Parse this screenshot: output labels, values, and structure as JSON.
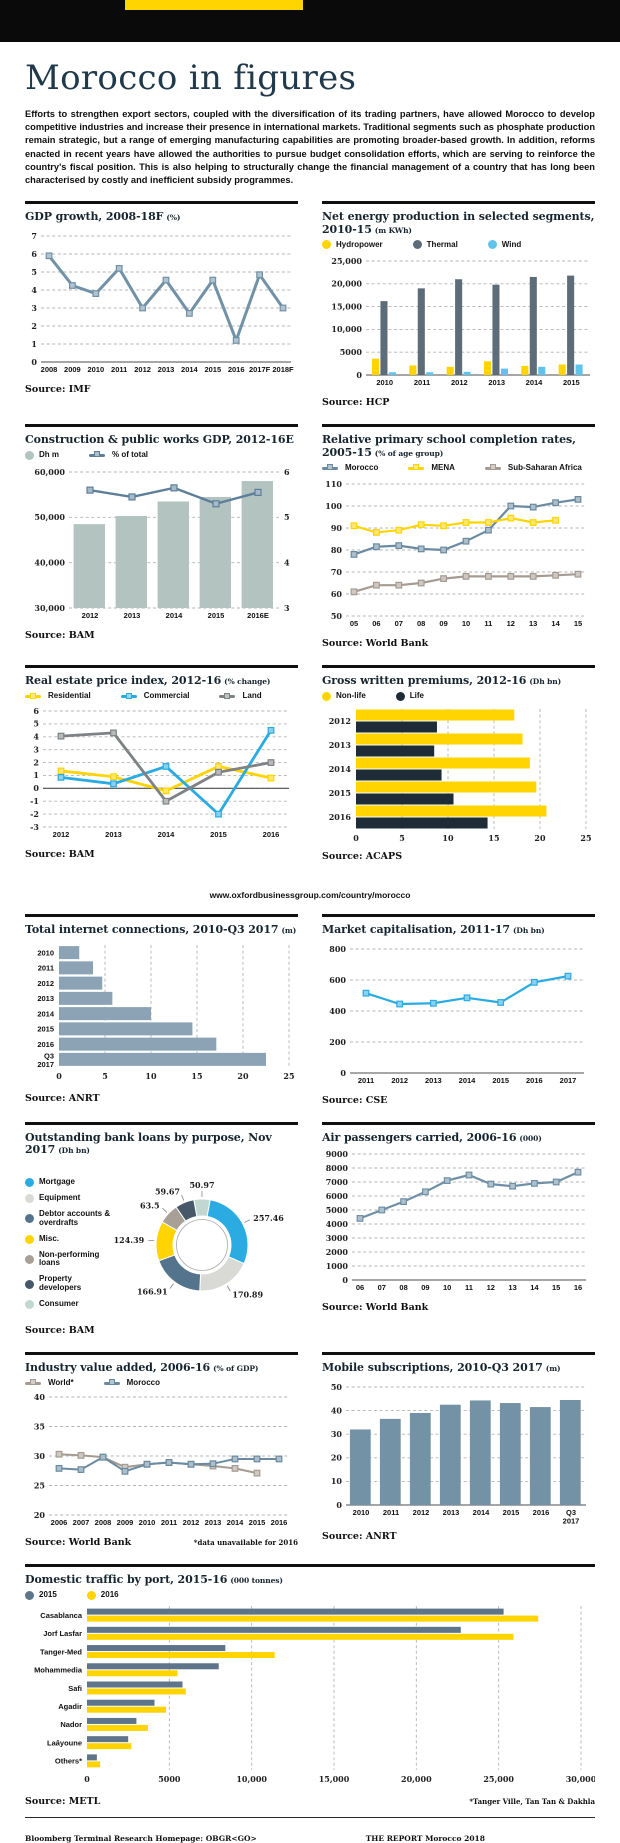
{
  "page": {
    "title": "Morocco in figures",
    "intro": "Efforts to strengthen export sectors, coupled with the diversification of its trading partners, have allowed Morocco to develop competitive industries and increase their presence in international markets. Traditional segments such as phosphate production remain strategic, but a range of emerging manufacturing capabilities are promoting broader-based growth. In addition, reforms enacted in recent years have allowed the authorities to pursue budget consolidation efforts, which are serving to reinforce the country's fiscal position. This is also helping to structurally change the financial management of a country that has long been characterised by costly and inefficient subsidy programmes.",
    "url_banner": "www.oxfordbusinessgroup.com/country/morocco",
    "footer_left": "Bloomberg Terminal Research Homepage: OBGR<GO>",
    "footer_right": "THE REPORT Morocco 2018"
  },
  "colors": {
    "accent_yellow": "#ffd400",
    "title_navy": "#203a4c",
    "steel_blue": "#6e8ea6",
    "bright_blue": "#29abe2",
    "dark_navy": "#1e2c38"
  },
  "chart_data": [
    {
      "id": "gdp-growth",
      "type": "line",
      "title": "GDP growth, 2008-18F",
      "unit": "(%)",
      "source": "Source: IMF",
      "note": "",
      "x": [
        "2008",
        "2009",
        "2010",
        "2011",
        "2012",
        "2013",
        "2014",
        "2015",
        "2016",
        "2017F",
        "2018F"
      ],
      "series": [
        {
          "name": "",
          "color": "#7191a7",
          "values": [
            5.9,
            4.25,
            3.8,
            5.2,
            3.0,
            4.55,
            2.7,
            4.55,
            1.2,
            4.85,
            3.0
          ]
        }
      ],
      "ylim": [
        0,
        7
      ],
      "yticks": [
        0,
        1,
        2,
        3,
        4,
        5,
        6,
        7
      ]
    },
    {
      "id": "energy",
      "type": "bar",
      "title": "Net energy production in selected segments, 2010-15",
      "unit": "(m KWh)",
      "source": "Source: HCP",
      "note": "",
      "x": [
        "2010",
        "2011",
        "2012",
        "2013",
        "2014",
        "2015"
      ],
      "series": [
        {
          "name": "Hydropower",
          "color": "#ffd400",
          "values": [
            3600,
            2100,
            1800,
            3000,
            2000,
            2300
          ]
        },
        {
          "name": "Thermal",
          "color": "#5d6c79",
          "values": [
            16200,
            19000,
            21000,
            19800,
            21500,
            21800
          ]
        },
        {
          "name": "Wind",
          "color": "#5fc3ea",
          "values": [
            600,
            600,
            700,
            1400,
            1800,
            2300
          ]
        }
      ],
      "ylim": [
        0,
        25000
      ],
      "yticks": [
        0,
        5000,
        10000,
        15000,
        20000,
        25000
      ],
      "ytick_labels": [
        "0",
        "5000",
        "10,000",
        "15,000",
        "20,000",
        "25,000"
      ]
    },
    {
      "id": "construction",
      "type": "combo",
      "title": "Construction & public works GDP, 2012-16E",
      "unit": "",
      "source": "Source: BAM",
      "note": "",
      "x": [
        "2012",
        "2013",
        "2014",
        "2015",
        "2016E"
      ],
      "bar_series": {
        "name": "Dh m",
        "color": "#b3c4c0",
        "values": [
          48500,
          50300,
          53500,
          54500,
          58000
        ]
      },
      "line_series": {
        "name": "% of total",
        "color": "#5d7f99",
        "values": [
          5.6,
          5.45,
          5.65,
          5.3,
          5.55
        ]
      },
      "ylim": [
        30000,
        60000
      ],
      "yticks": [
        30000,
        40000,
        50000,
        60000
      ],
      "ytick_labels": [
        "30,000",
        "40,000",
        "50,000",
        "60,000"
      ],
      "y2lim": [
        3,
        6
      ],
      "y2ticks": [
        3,
        4,
        5,
        6
      ]
    },
    {
      "id": "school",
      "type": "line",
      "title": "Relative primary school completion rates, 2005-15",
      "unit": "(% of age group)",
      "source": "Source: World Bank",
      "note": "",
      "x": [
        "05",
        "06",
        "07",
        "08",
        "09",
        "10",
        "11",
        "12",
        "13",
        "14",
        "15"
      ],
      "series": [
        {
          "name": "Morocco",
          "color": "#6a8aa1",
          "values": [
            78,
            81.5,
            82,
            80.5,
            80,
            84,
            89,
            100,
            99.5,
            101.5,
            103
          ]
        },
        {
          "name": "MENA",
          "color": "#ffd400",
          "values": [
            91,
            88,
            89,
            91.5,
            91,
            92.5,
            92.5,
            94.5,
            92.5,
            93.5,
            null
          ]
        },
        {
          "name": "Sub-Saharan Africa",
          "color": "#a59b92",
          "values": [
            61,
            64,
            64,
            65,
            67,
            68,
            68,
            68,
            68,
            68.5,
            69
          ]
        }
      ],
      "ylim": [
        50,
        110
      ],
      "yticks": [
        50,
        60,
        70,
        80,
        90,
        100,
        110
      ]
    },
    {
      "id": "realestate",
      "type": "line",
      "title": "Real estate price index, 2012-16",
      "unit": "(% change)",
      "source": "Source: BAM",
      "note": "",
      "x": [
        "2012",
        "2013",
        "2014",
        "2015",
        "2016"
      ],
      "series": [
        {
          "name": "Residential",
          "color": "#ffd400",
          "values": [
            1.35,
            0.9,
            -0.2,
            1.7,
            0.8
          ]
        },
        {
          "name": "Commercial",
          "color": "#29abe2",
          "values": [
            0.85,
            0.35,
            1.7,
            -2.0,
            4.5
          ]
        },
        {
          "name": "Land",
          "color": "#7f8285",
          "values": [
            4.05,
            4.3,
            -1.0,
            1.25,
            2.0
          ]
        }
      ],
      "ylim": [
        -3,
        6
      ],
      "yticks": [
        -3,
        -2,
        -1,
        0,
        1,
        2,
        3,
        4,
        5,
        6
      ]
    },
    {
      "id": "premiums",
      "type": "barh",
      "title": "Gross written premiums, 2012-16",
      "unit": "(Dh bn)",
      "source": "Source: ACAPS",
      "note": "",
      "categories": [
        "2012",
        "2013",
        "2014",
        "2015",
        "2016"
      ],
      "series": [
        {
          "name": "Non-life",
          "color": "#ffd400",
          "values": [
            17.2,
            18.1,
            18.9,
            19.6,
            20.7
          ]
        },
        {
          "name": "Life",
          "color": "#1e2c38",
          "values": [
            8.8,
            8.5,
            9.3,
            10.6,
            14.3
          ]
        }
      ],
      "xlim": [
        0,
        25
      ],
      "xticks": [
        0,
        5,
        10,
        15,
        20,
        25
      ]
    },
    {
      "id": "internet",
      "type": "barh",
      "title": "Total internet connections, 2010-Q3 2017",
      "unit": "(m)",
      "source": "Source: ANRT",
      "note": "",
      "categories": [
        "2010",
        "2011",
        "2012",
        "2013",
        "2014",
        "2015",
        "2016",
        "Q3\n2017"
      ],
      "series": [
        {
          "name": "",
          "color": "#8ba3b4",
          "values": [
            2.2,
            3.7,
            4.7,
            5.8,
            10,
            14.5,
            17.1,
            22.5
          ]
        }
      ],
      "xlim": [
        0,
        25
      ],
      "xticks": [
        0,
        5,
        10,
        15,
        20,
        25
      ]
    },
    {
      "id": "marketcap",
      "type": "line",
      "title": "Market capitalisation, 2011-17",
      "unit": "(Dh bn)",
      "source": "Source: CSE",
      "note": "",
      "x": [
        "2011",
        "2012",
        "2013",
        "2014",
        "2015",
        "2016",
        "2017"
      ],
      "series": [
        {
          "name": "",
          "color": "#29abe2",
          "values": [
            515,
            445,
            450,
            485,
            455,
            585,
            625
          ]
        }
      ],
      "ylim": [
        0,
        800
      ],
      "yticks": [
        0,
        200,
        400,
        600,
        800
      ]
    },
    {
      "id": "loans",
      "type": "donut",
      "title": "Outstanding bank loans by purpose, Nov 2017",
      "unit": "(Dh bn)",
      "source": "Source: BAM",
      "note": "",
      "slices": [
        {
          "label": "Mortgage",
          "color": "#2aabe2",
          "value": 257.46,
          "value_label": "257.46"
        },
        {
          "label": "Equipment",
          "color": "#d9d9d5",
          "value": 170.89,
          "value_label": "170.89"
        },
        {
          "label": "Debtor accounts & overdrafts",
          "color": "#54748d",
          "value": 166.91,
          "value_label": "166.91"
        },
        {
          "label": "Misc.",
          "color": "#ffd400",
          "value": 124.39,
          "value_label": "124.39"
        },
        {
          "label": "Non-performing loans",
          "color": "#a89f96",
          "value": 63.5,
          "value_label": "63.5"
        },
        {
          "label": "Property developers",
          "color": "#475969",
          "value": 59.67,
          "value_label": "59.67"
        },
        {
          "label": "Consumer",
          "color": "#c3d7d2",
          "value": 50.97,
          "value_label": "50.97"
        }
      ]
    },
    {
      "id": "air",
      "type": "line",
      "title": "Air passengers carried, 2006-16",
      "unit": "(000)",
      "source": "Source: World Bank",
      "note": "",
      "x": [
        "06",
        "07",
        "08",
        "09",
        "10",
        "11",
        "12",
        "13",
        "14",
        "15",
        "16"
      ],
      "series": [
        {
          "name": "",
          "color": "#6f8fa6",
          "values": [
            4400,
            5000,
            5600,
            6300,
            7100,
            7500,
            6850,
            6700,
            6900,
            7000,
            7700
          ]
        }
      ],
      "ylim": [
        0,
        9000
      ],
      "yticks": [
        0,
        1000,
        2000,
        3000,
        4000,
        5000,
        6000,
        7000,
        8000,
        9000
      ]
    },
    {
      "id": "industry",
      "type": "line",
      "title": "Industry value added, 2006-16",
      "unit": "(% of GDP)",
      "source": "Source: World Bank",
      "note": "*data unavailable for 2016",
      "x": [
        "2006",
        "2007",
        "2008",
        "2009",
        "2010",
        "2011",
        "2012",
        "2013",
        "2014",
        "2015",
        "2016"
      ],
      "series": [
        {
          "name": "World*",
          "color": "#a59b92",
          "values": [
            30.3,
            30.1,
            29.8,
            28.1,
            28.6,
            28.9,
            28.6,
            28.3,
            27.9,
            27.1,
            null
          ]
        },
        {
          "name": "Morocco",
          "color": "#6a8aa1",
          "values": [
            27.9,
            27.7,
            29.8,
            27.4,
            28.6,
            28.9,
            28.6,
            28.7,
            29.5,
            29.5,
            29.5
          ]
        }
      ],
      "ylim": [
        20,
        40
      ],
      "yticks": [
        20,
        25,
        30,
        35,
        40
      ]
    },
    {
      "id": "mobile",
      "type": "bar",
      "title": "Mobile subscriptions, 2010-Q3 2017",
      "unit": "(m)",
      "source": "Source: ANRT",
      "note": "",
      "x": [
        "2010",
        "2011",
        "2012",
        "2013",
        "2014",
        "2015",
        "2016",
        "Q3\n2017"
      ],
      "series": [
        {
          "name": "",
          "color": "#7492a5",
          "values": [
            32,
            36.5,
            39,
            42.5,
            44.3,
            43.2,
            41.5,
            44.5
          ]
        }
      ],
      "ylim": [
        0,
        50
      ],
      "yticks": [
        0,
        10,
        20,
        30,
        40,
        50
      ]
    },
    {
      "id": "ports",
      "type": "barh",
      "title": "Domestic traffic by port, 2015-16",
      "unit": "(000 tonnes)",
      "source": "Source: METL",
      "note": "*Tanger Ville, Tan Tan & Dakhla",
      "categories": [
        "Casablanca",
        "Jorf Lasfar",
        "Tanger-Med",
        "Mohammedia",
        "Safi",
        "Agadir",
        "Nador",
        "Laâyoune",
        "Others*"
      ],
      "series": [
        {
          "name": "2015",
          "color": "#5d7489",
          "values": [
            25300,
            22700,
            8400,
            8000,
            5800,
            4100,
            3000,
            2500,
            600
          ]
        },
        {
          "name": "2016",
          "color": "#ffd400",
          "values": [
            27400,
            25900,
            11400,
            5500,
            6000,
            4800,
            3700,
            2700,
            800
          ]
        }
      ],
      "xlim": [
        0,
        30000
      ],
      "xticks": [
        0,
        5000,
        10000,
        15000,
        20000,
        25000,
        30000
      ],
      "xtick_labels": [
        "0",
        "5000",
        "10,000",
        "15,000",
        "20,000",
        "25,000",
        "30,000"
      ]
    }
  ]
}
